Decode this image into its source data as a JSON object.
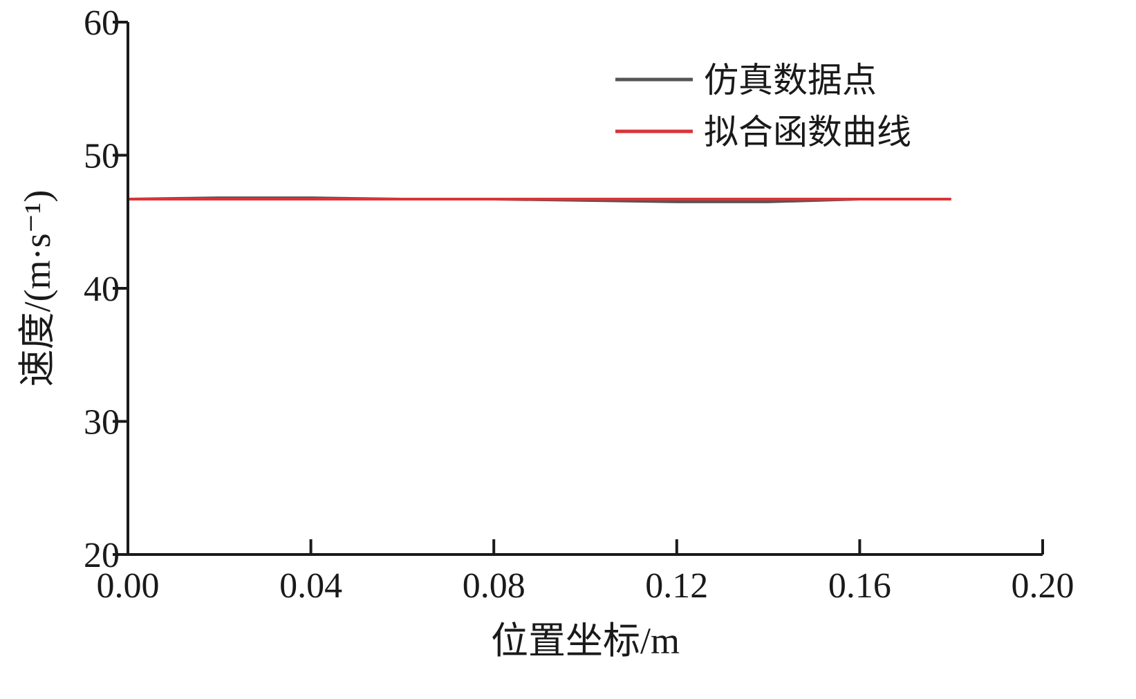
{
  "chart_data": {
    "type": "line",
    "xlabel": "位置坐标/m",
    "ylabel": "速度/(m·s⁻¹)",
    "xlim": [
      0.0,
      0.2
    ],
    "ylim": [
      20,
      60
    ],
    "xticks": [
      "0.00",
      "0.04",
      "0.08",
      "0.12",
      "0.16",
      "0.20"
    ],
    "yticks": [
      "20",
      "30",
      "40",
      "50",
      "60"
    ],
    "grid": false,
    "legend_position": "top-right",
    "series": [
      {
        "name": "仿真数据点",
        "color": "#555555",
        "x": [
          0.0,
          0.02,
          0.04,
          0.06,
          0.08,
          0.1,
          0.12,
          0.14,
          0.16,
          0.18
        ],
        "y": [
          46.7,
          46.8,
          46.8,
          46.7,
          46.7,
          46.6,
          46.5,
          46.5,
          46.7,
          46.7
        ]
      },
      {
        "name": "拟合函数曲线",
        "color": "#d9343a",
        "x": [
          0.0,
          0.02,
          0.04,
          0.06,
          0.08,
          0.1,
          0.12,
          0.14,
          0.16,
          0.18
        ],
        "y": [
          46.7,
          46.7,
          46.7,
          46.7,
          46.7,
          46.7,
          46.7,
          46.7,
          46.7,
          46.7
        ]
      }
    ]
  }
}
